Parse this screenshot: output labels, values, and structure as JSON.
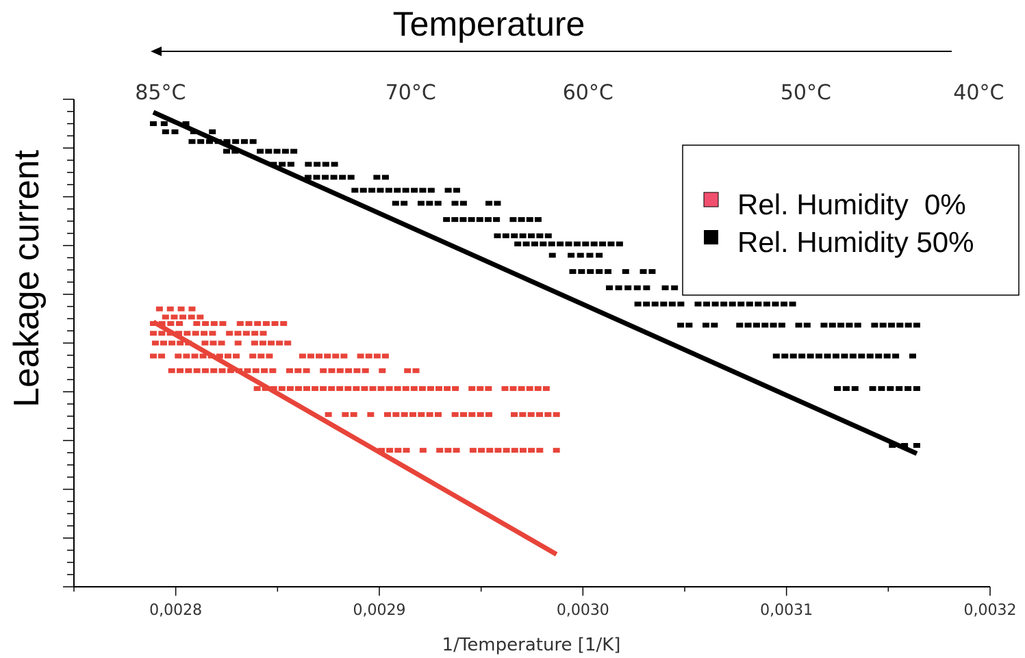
{
  "chart_data": {
    "type": "scatter",
    "title": "Temperature",
    "xlabel": "1/Temperature [1/K]",
    "ylabel": "Leakage current",
    "xlim": [
      0.00275,
      0.0032
    ],
    "x_ticks": [
      0.0028,
      0.0029,
      0.003,
      0.0031,
      0.0032
    ],
    "x_tick_labels": [
      "0,0028",
      "0,0029",
      "0,0030",
      "0,0031",
      "0,0032"
    ],
    "top_ticks": [
      {
        "label": "85°C",
        "x": 0.0027925
      },
      {
        "label": "70°C",
        "x": 0.0029154
      },
      {
        "label": "60°C",
        "x": 0.0030025
      },
      {
        "label": "50°C",
        "x": 0.0031095
      },
      {
        "label": "40°C",
        "x": 0.0031944
      }
    ],
    "y_tick_labels_shown": false,
    "legend_position": "top-right",
    "series": [
      {
        "name": "Rel. Humidity  0%",
        "color": "#e8443a",
        "marker_color": "#f0506e",
        "fit_line": {
          "x": [
            0.002789,
            0.002987
          ],
          "y": [
            8.15,
            1.0
          ]
        },
        "clusters": [
          {
            "y": 8.55,
            "x": [
              0.002792,
              0.002808
            ]
          },
          {
            "y": 8.3,
            "x": [
              0.002795,
              0.002812
            ]
          },
          {
            "y": 8.1,
            "x": [
              0.002789,
              0.002853
            ]
          },
          {
            "y": 7.8,
            "x": [
              0.002789,
              0.002843
            ]
          },
          {
            "y": 7.5,
            "x": [
              0.00279,
              0.002855
            ]
          },
          {
            "y": 7.1,
            "x": [
              0.002789,
              0.002903
            ]
          },
          {
            "y": 6.65,
            "x": [
              0.002798,
              0.002918
            ]
          },
          {
            "y": 6.1,
            "x": [
              0.00284,
              0.002982
            ]
          },
          {
            "y": 5.3,
            "x": [
              0.002875,
              0.002987
            ]
          },
          {
            "y": 4.2,
            "x": [
              0.002901,
              0.002987
            ]
          }
        ]
      },
      {
        "name": "Rel. Humidity 50%",
        "color": "#000000",
        "marker_color": "#000000",
        "fit_line": {
          "x": [
            0.002789,
            0.003164
          ],
          "y": [
            14.6,
            4.1
          ]
        },
        "clusters": [
          {
            "y": 14.25,
            "x": [
              0.002789,
              0.002805
            ]
          },
          {
            "y": 14.0,
            "x": [
              0.002795,
              0.002818
            ]
          },
          {
            "y": 13.7,
            "x": [
              0.002808,
              0.002838
            ]
          },
          {
            "y": 13.4,
            "x": [
              0.002825,
              0.002858
            ]
          },
          {
            "y": 13.0,
            "x": [
              0.002848,
              0.002878
            ]
          },
          {
            "y": 12.6,
            "x": [
              0.002865,
              0.002903
            ]
          },
          {
            "y": 12.2,
            "x": [
              0.002888,
              0.002938
            ]
          },
          {
            "y": 11.8,
            "x": [
              0.002908,
              0.002958
            ]
          },
          {
            "y": 11.3,
            "x": [
              0.002933,
              0.002978
            ]
          },
          {
            "y": 10.8,
            "x": [
              0.002958,
              0.002983
            ]
          },
          {
            "y": 10.55,
            "x": [
              0.002968,
              0.003018
            ]
          },
          {
            "y": 10.2,
            "x": [
              0.002985,
              0.003008
            ]
          },
          {
            "y": 9.7,
            "x": [
              0.002995,
              0.003034
            ]
          },
          {
            "y": 9.2,
            "x": [
              0.003013,
              0.003045
            ]
          },
          {
            "y": 8.7,
            "x": [
              0.003027,
              0.003103
            ]
          },
          {
            "y": 8.05,
            "x": [
              0.003048,
              0.003164
            ]
          },
          {
            "y": 7.1,
            "x": [
              0.003095,
              0.003162
            ]
          },
          {
            "y": 6.1,
            "x": [
              0.003125,
              0.003164
            ]
          },
          {
            "y": 4.35,
            "x": [
              0.003152,
              0.003164
            ]
          }
        ]
      }
    ]
  }
}
